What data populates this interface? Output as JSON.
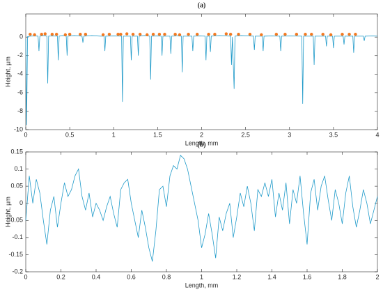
{
  "chart_data": [
    {
      "type": "line",
      "title": "(a)",
      "x_label": "Length, mm",
      "y_label": "Height, µm",
      "xlim": [
        0,
        4
      ],
      "xticks": [
        0,
        0.5,
        1,
        1.5,
        2,
        2.5,
        3,
        3.5,
        4
      ],
      "ylim": [
        -10,
        2.5
      ],
      "yticks": [
        -10,
        -8,
        -6,
        -4,
        -2,
        0
      ],
      "series": [
        {
          "color": "#1f9ac9",
          "marker": "none",
          "x": [
            0,
            0.01,
            0.02,
            0.05,
            0.1,
            0.14,
            0.15,
            0.16,
            0.2,
            0.24,
            0.25,
            0.26,
            0.3,
            0.36,
            0.37,
            0.38,
            0.42,
            0.46,
            0.47,
            0.48,
            0.55,
            0.64,
            0.65,
            0.66,
            0.75,
            0.85,
            0.89,
            0.9,
            0.91,
            1.0,
            1.09,
            1.1,
            1.11,
            1.19,
            1.2,
            1.21,
            1.27,
            1.28,
            1.29,
            1.35,
            1.41,
            1.42,
            1.43,
            1.5,
            1.54,
            1.55,
            1.56,
            1.64,
            1.65,
            1.66,
            1.72,
            1.77,
            1.78,
            1.79,
            1.89,
            1.9,
            1.91,
            1.98,
            2.04,
            2.05,
            2.06,
            2.09,
            2.1,
            2.11,
            2.2,
            2.33,
            2.34,
            2.35,
            2.37,
            2.38,
            2.45,
            2.59,
            2.6,
            2.61,
            2.69,
            2.7,
            2.71,
            2.8,
            2.89,
            2.9,
            2.91,
            3.0,
            3.14,
            3.15,
            3.16,
            3.22,
            3.27,
            3.28,
            3.29,
            3.41,
            3.42,
            3.43,
            3.49,
            3.5,
            3.51,
            3.61,
            3.62,
            3.63,
            3.72,
            3.73,
            3.74,
            3.84,
            3.85,
            3.86,
            3.95,
            4.0
          ],
          "values": [
            -0.2,
            -9.5,
            0.05,
            0.1,
            0.12,
            0.1,
            -1.5,
            0.1,
            0.15,
            0.1,
            -5,
            0.1,
            0.12,
            0.1,
            -2.5,
            0.1,
            0.15,
            0.1,
            -2,
            0.1,
            0.15,
            0.1,
            -0.6,
            0.1,
            0.15,
            0.1,
            0.1,
            -1.5,
            0.1,
            0.12,
            0.1,
            -7,
            0.1,
            0.1,
            -2.5,
            0.1,
            0.1,
            -2,
            0.1,
            0.15,
            0.1,
            -4.6,
            0.1,
            0.12,
            0.1,
            -2,
            0.1,
            0.1,
            -1.8,
            0.1,
            0.12,
            0.1,
            -3.8,
            0.1,
            0.1,
            -1.5,
            0.1,
            0.12,
            0.1,
            -2.5,
            0.1,
            0.1,
            -1.6,
            0.1,
            0.15,
            0.1,
            -3,
            0.0,
            -5.6,
            0.1,
            0.15,
            0.1,
            -1.4,
            0.1,
            0.1,
            -1.5,
            0.1,
            0.12,
            0.1,
            -1.5,
            0.1,
            0.12,
            0.1,
            -7.2,
            0.1,
            0.1,
            0.1,
            -3,
            0.1,
            0.1,
            -1,
            0.1,
            0.1,
            -1.2,
            0.1,
            0.1,
            -0.8,
            0.1,
            0.1,
            -1.7,
            0.1,
            0.1,
            -0.4,
            0.1,
            0.12,
            0.1
          ]
        },
        {
          "color": "#f47920",
          "marker": "dot",
          "x": [
            0.05,
            0.1,
            0.18,
            0.22,
            0.3,
            0.35,
            0.45,
            0.5,
            0.62,
            0.68,
            0.88,
            0.95,
            1.05,
            1.08,
            1.15,
            1.22,
            1.3,
            1.38,
            1.45,
            1.52,
            1.58,
            1.7,
            1.75,
            1.85,
            1.95,
            2.08,
            2.15,
            2.28,
            2.33,
            2.42,
            2.55,
            2.68,
            2.85,
            2.95,
            3.08,
            3.18,
            3.25,
            3.38,
            3.47,
            3.6,
            3.68,
            3.75
          ],
          "values": [
            0.3,
            0.25,
            0.3,
            0.35,
            0.3,
            0.3,
            0.25,
            0.3,
            0.3,
            0.3,
            0.25,
            0.3,
            0.3,
            0.3,
            0.35,
            0.3,
            0.3,
            0.25,
            0.3,
            0.3,
            0.3,
            0.3,
            0.25,
            0.3,
            0.3,
            0.3,
            0.3,
            0.35,
            0.3,
            0.3,
            0.3,
            0.25,
            0.3,
            0.3,
            0.3,
            0.3,
            0.3,
            0.3,
            0.25,
            0.3,
            0.3,
            0.3
          ]
        }
      ]
    },
    {
      "type": "line",
      "title": "(b)",
      "x_label": "Length, mm",
      "y_label": "Height, µm",
      "xlim": [
        0,
        2
      ],
      "xticks": [
        0,
        0.2,
        0.4,
        0.6,
        0.8,
        1,
        1.2,
        1.4,
        1.6,
        1.8,
        2
      ],
      "ylim": [
        -0.2,
        0.15
      ],
      "yticks": [
        -0.2,
        -0.15,
        -0.1,
        -0.05,
        0,
        0.05,
        0.1,
        0.15
      ],
      "series": [
        {
          "color": "#1f9ac9",
          "marker": "none",
          "x": [
            0,
            0.02,
            0.04,
            0.06,
            0.08,
            0.1,
            0.12,
            0.14,
            0.16,
            0.18,
            0.2,
            0.22,
            0.24,
            0.26,
            0.28,
            0.3,
            0.32,
            0.34,
            0.36,
            0.38,
            0.4,
            0.42,
            0.44,
            0.46,
            0.48,
            0.5,
            0.52,
            0.54,
            0.56,
            0.58,
            0.6,
            0.62,
            0.64,
            0.66,
            0.68,
            0.7,
            0.72,
            0.74,
            0.76,
            0.78,
            0.8,
            0.82,
            0.84,
            0.86,
            0.88,
            0.9,
            0.92,
            0.94,
            0.96,
            0.98,
            1,
            1.02,
            1.04,
            1.06,
            1.08,
            1.1,
            1.12,
            1.14,
            1.16,
            1.18,
            1.2,
            1.22,
            1.24,
            1.26,
            1.28,
            1.3,
            1.32,
            1.34,
            1.36,
            1.38,
            1.4,
            1.42,
            1.44,
            1.46,
            1.48,
            1.5,
            1.52,
            1.54,
            1.56,
            1.58,
            1.6,
            1.62,
            1.64,
            1.66,
            1.68,
            1.7,
            1.72,
            1.74,
            1.76,
            1.78,
            1.8,
            1.82,
            1.84,
            1.86,
            1.88,
            1.9,
            1.92,
            1.94,
            1.96,
            1.98,
            2
          ],
          "values": [
            -0.05,
            0.08,
            0.0,
            0.07,
            0.03,
            -0.05,
            -0.12,
            -0.02,
            0.02,
            -0.07,
            0.0,
            0.06,
            0.02,
            0.04,
            0.08,
            0.1,
            0.02,
            -0.02,
            0.03,
            -0.04,
            0.0,
            -0.02,
            -0.05,
            -0.01,
            0.02,
            -0.03,
            -0.07,
            0.04,
            0.06,
            0.07,
            0.0,
            -0.05,
            -0.1,
            -0.02,
            -0.07,
            -0.13,
            -0.17,
            -0.08,
            0.04,
            0.05,
            -0.01,
            0.08,
            0.11,
            0.1,
            0.14,
            0.13,
            0.1,
            0.05,
            0.0,
            -0.05,
            -0.13,
            -0.09,
            -0.03,
            -0.09,
            -0.16,
            -0.04,
            -0.08,
            -0.03,
            0.0,
            -0.1,
            -0.04,
            0.03,
            -0.01,
            0.05,
            0.0,
            -0.08,
            0.04,
            0.02,
            0.06,
            0.02,
            0.07,
            -0.04,
            0.03,
            -0.02,
            0.06,
            -0.06,
            0.04,
            0.0,
            0.08,
            -0.03,
            -0.12,
            0.03,
            0.07,
            -0.02,
            0.05,
            0.08,
            0.01,
            -0.05,
            0.04,
            0.0,
            -0.06,
            0.03,
            0.08,
            -0.01,
            -0.07,
            -0.02,
            0.04,
            0.0,
            -0.06,
            -0.02,
            0.02
          ]
        }
      ]
    }
  ]
}
